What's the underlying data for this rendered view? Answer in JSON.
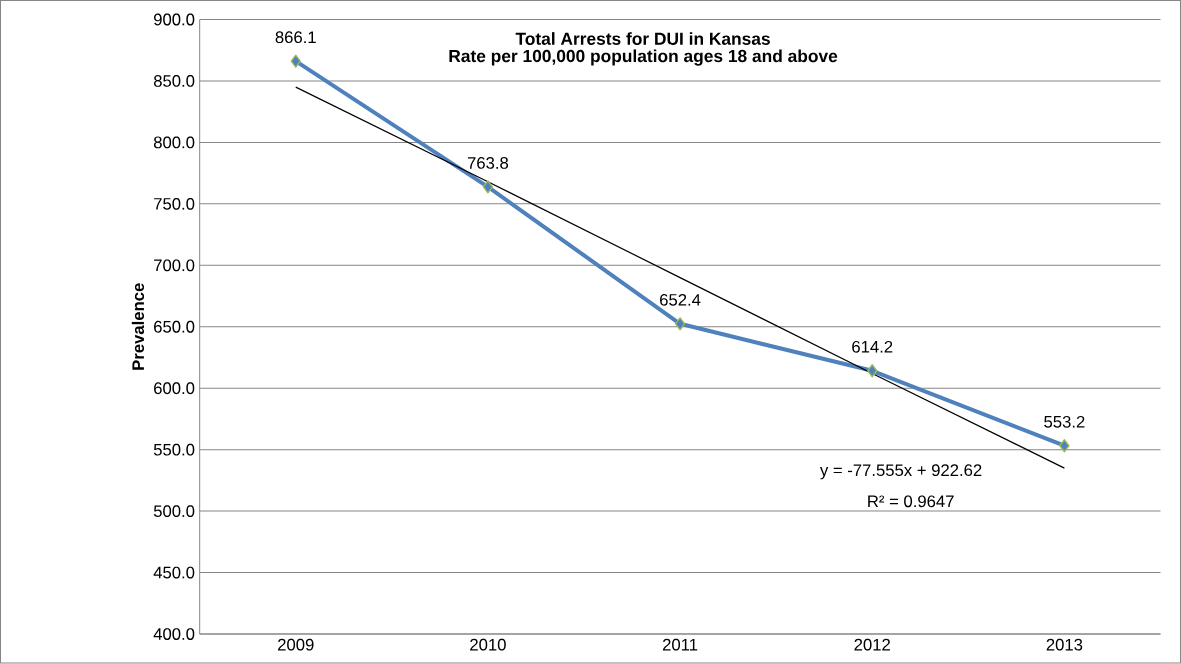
{
  "chart_data": {
    "type": "line",
    "title": "Total Arrests for DUI in Kansas",
    "subtitle": "Rate per 100,000 population ages 18 and above",
    "ylabel": "Prevalence",
    "categories": [
      "2009",
      "2010",
      "2011",
      "2012",
      "2013"
    ],
    "series": [
      {
        "color": "#4f81bd",
        "marker": "diamond",
        "values": [
          866.1,
          763.8,
          652.4,
          614.2,
          553.2
        ],
        "value_labels": [
          "866.1",
          "763.8",
          "652.4",
          "614.2",
          "553.2"
        ]
      },
      {
        "type": "line",
        "color": "#000000",
        "marker": "none",
        "values": [
          845,
          768,
          690,
          612,
          535
        ]
      }
    ],
    "ylim": [
      400,
      900
    ],
    "yticks": [
      {
        "value": 400,
        "label": "400.0"
      },
      {
        "value": 450,
        "label": "450.0"
      },
      {
        "value": 500,
        "label": "500.0"
      },
      {
        "value": 550,
        "label": "550.0"
      },
      {
        "value": 600,
        "label": "600.0"
      },
      {
        "value": 650,
        "label": "650.0"
      },
      {
        "value": 700,
        "label": "700.0"
      },
      {
        "value": 750,
        "label": "750.0"
      },
      {
        "value": 800,
        "label": "800.0"
      },
      {
        "value": 850,
        "label": "850.0"
      },
      {
        "value": 900,
        "label": "900.0"
      }
    ],
    "grid": "y",
    "annotations": [
      "y = -77.555x + 922.62",
      "R² = 0.9647"
    ]
  }
}
